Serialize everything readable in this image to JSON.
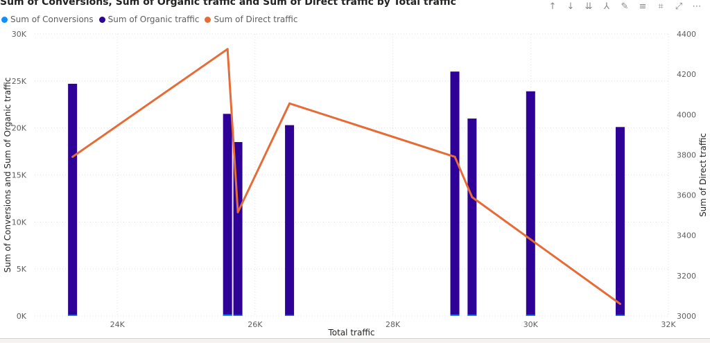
{
  "visual": {
    "toolbar": [
      {
        "name": "sort-ascending-icon",
        "glyph": "↑"
      },
      {
        "name": "sort-descending-icon",
        "glyph": "↓"
      },
      {
        "name": "sort-both-icon",
        "glyph": "⇊"
      },
      {
        "name": "drill-down-icon",
        "glyph": "⅄"
      },
      {
        "name": "pin-icon",
        "glyph": "✎"
      },
      {
        "name": "filter-icon",
        "glyph": "≡"
      },
      {
        "name": "format-brush-icon",
        "glyph": "⌗"
      },
      {
        "name": "focus-mode-icon",
        "glyph": "⤢"
      },
      {
        "name": "more-options-icon",
        "glyph": "⋯"
      }
    ]
  },
  "chart_data": {
    "type": "bar",
    "title": "Sum of Conversions, Sum of Organic traffic and Sum of Direct traffic by Total traffic",
    "xlabel": "Total traffic",
    "ylabel": "Sum of Conversions and Sum of Organic traffic",
    "y2label": "Sum of Direct traffic",
    "xlim": [
      22800,
      32000
    ],
    "ylim": [
      0,
      30000
    ],
    "y2lim": [
      3000,
      4400
    ],
    "xticks": [
      24000,
      26000,
      28000,
      30000,
      32000
    ],
    "xtick_labels": [
      "24K",
      "26K",
      "28K",
      "30K",
      "32K"
    ],
    "yticks": [
      0,
      5000,
      10000,
      15000,
      20000,
      25000,
      30000
    ],
    "ytick_labels": [
      "0K",
      "5K",
      "10K",
      "15K",
      "20K",
      "25K",
      "30K"
    ],
    "y2ticks": [
      3000,
      3200,
      3400,
      3600,
      3800,
      4000,
      4200,
      4400
    ],
    "y2tick_labels": [
      "3000",
      "3200",
      "3400",
      "3600",
      "3800",
      "4000",
      "4200",
      "4400"
    ],
    "grid": true,
    "legend_position": "top-left",
    "x": [
      23350,
      25600,
      25750,
      26500,
      28900,
      29150,
      30000,
      31300
    ],
    "series": [
      {
        "name": "Sum of Conversions",
        "type": "bar",
        "axis": "left",
        "color": "#118DFF",
        "values": [
          120,
          150,
          110,
          100,
          140,
          130,
          120,
          110
        ]
      },
      {
        "name": "Sum of Organic traffic",
        "type": "bar",
        "axis": "left",
        "color": "#2E0296",
        "values": [
          24700,
          21500,
          18500,
          20300,
          26000,
          21000,
          23900,
          20100
        ]
      },
      {
        "name": "Sum of Direct traffic",
        "type": "line",
        "axis": "right",
        "color": "#E66C37",
        "values": [
          3790,
          4325,
          3515,
          4055,
          3790,
          3590,
          3380,
          3060
        ]
      }
    ]
  }
}
